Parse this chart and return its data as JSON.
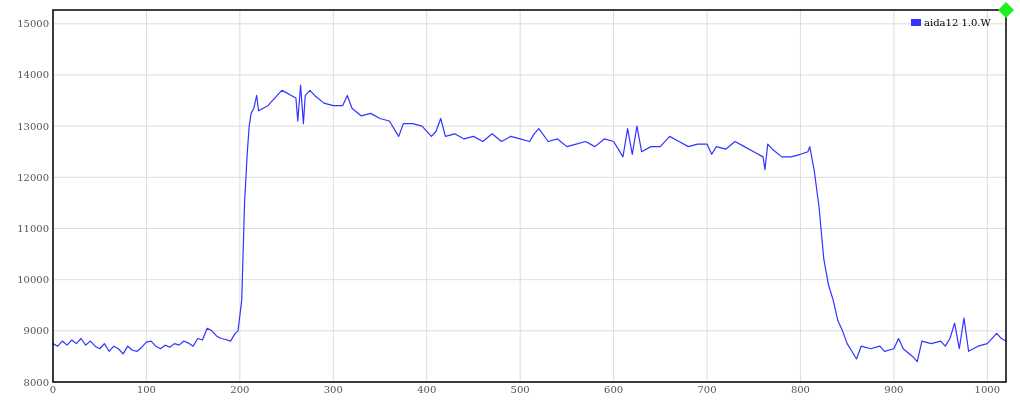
{
  "chart_data": {
    "type": "line",
    "xlim": [
      0,
      1020
    ],
    "ylim": [
      8000,
      15270
    ],
    "xticks": [
      0,
      100,
      200,
      300,
      400,
      500,
      600,
      700,
      800,
      900,
      1000
    ],
    "yticks": [
      8000,
      9000,
      10000,
      11000,
      12000,
      13000,
      14000,
      15000
    ],
    "grid": true,
    "legend": "top right",
    "marker": "none",
    "line_style": "solid",
    "x": [
      0,
      5,
      10,
      15,
      20,
      25,
      30,
      35,
      40,
      45,
      50,
      55,
      60,
      65,
      70,
      75,
      80,
      85,
      90,
      95,
      100,
      105,
      110,
      115,
      120,
      125,
      130,
      135,
      140,
      145,
      150,
      155,
      160,
      165,
      170,
      175,
      180,
      185,
      190,
      195,
      198,
      202,
      205,
      208,
      210,
      212,
      215,
      218,
      220,
      225,
      230,
      240,
      245,
      250,
      255,
      260,
      262,
      265,
      268,
      270,
      275,
      280,
      290,
      300,
      310,
      315,
      320,
      330,
      340,
      350,
      360,
      370,
      375,
      385,
      395,
      405,
      410,
      415,
      420,
      430,
      440,
      450,
      460,
      470,
      480,
      490,
      500,
      510,
      515,
      520,
      530,
      540,
      550,
      560,
      570,
      580,
      590,
      600,
      605,
      610,
      615,
      620,
      625,
      630,
      640,
      650,
      660,
      670,
      680,
      690,
      700,
      705,
      710,
      720,
      730,
      740,
      750,
      760,
      762,
      765,
      770,
      780,
      790,
      800,
      808,
      810,
      815,
      820,
      825,
      830,
      835,
      840,
      845,
      850,
      855,
      860,
      865,
      875,
      885,
      890,
      900,
      905,
      910,
      920,
      925,
      930,
      940,
      950,
      955,
      960,
      965,
      970,
      975,
      980,
      990,
      1000,
      1010,
      1015,
      1020
    ],
    "series": [
      {
        "name": "aida12 1.0.W",
        "color": "#3333ff",
        "values": [
          8750,
          8700,
          8800,
          8720,
          8820,
          8750,
          8850,
          8720,
          8800,
          8700,
          8650,
          8750,
          8600,
          8700,
          8650,
          8550,
          8700,
          8620,
          8600,
          8680,
          8780,
          8800,
          8700,
          8650,
          8720,
          8680,
          8750,
          8720,
          8800,
          8760,
          8700,
          8850,
          8820,
          9050,
          9000,
          8900,
          8850,
          8830,
          8800,
          8950,
          9000,
          9600,
          11500,
          12500,
          13000,
          13250,
          13350,
          13600,
          13300,
          13350,
          13400,
          13600,
          13700,
          13650,
          13600,
          13550,
          13100,
          13800,
          13050,
          13600,
          13700,
          13600,
          13450,
          13400,
          13400,
          13600,
          13350,
          13200,
          13250,
          13150,
          13100,
          12800,
          13050,
          13050,
          13000,
          12800,
          12900,
          13150,
          12800,
          12850,
          12750,
          12800,
          12700,
          12850,
          12700,
          12800,
          12750,
          12700,
          12850,
          12950,
          12700,
          12750,
          12600,
          12650,
          12700,
          12600,
          12750,
          12700,
          12550,
          12400,
          12950,
          12450,
          13000,
          12500,
          12600,
          12600,
          12800,
          12700,
          12600,
          12650,
          12650,
          12450,
          12600,
          12550,
          12700,
          12600,
          12500,
          12400,
          12150,
          12650,
          12550,
          12400,
          12400,
          12450,
          12500,
          12600,
          12100,
          11400,
          10400,
          9900,
          9600,
          9200,
          9000,
          8750,
          8600,
          8450,
          8700,
          8650,
          8700,
          8600,
          8650,
          8850,
          8650,
          8500,
          8400,
          8800,
          8750,
          8800,
          8700,
          8850,
          9150,
          8650,
          9250,
          8600,
          8700,
          8750,
          8950,
          8850,
          8800
        ]
      }
    ]
  }
}
